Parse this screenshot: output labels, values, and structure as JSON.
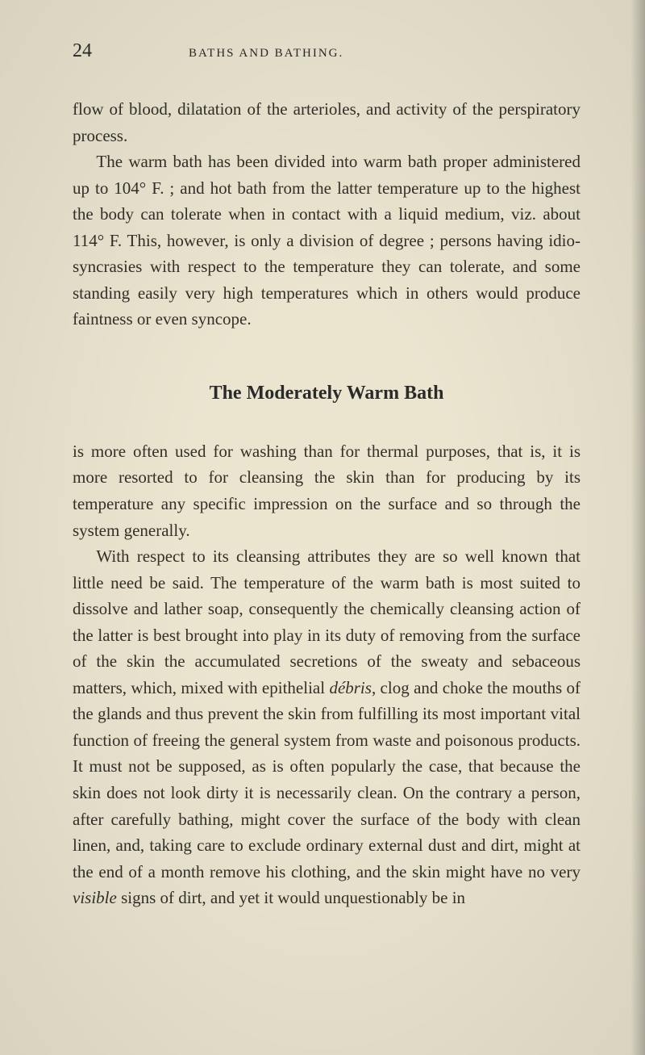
{
  "page": {
    "number": "24",
    "running_head": "BATHS AND BATHING.",
    "background_color": "#ebe5d0",
    "text_color": "#2a2a28",
    "body_fontsize": 21,
    "heading_fontsize": 24,
    "line_height": 1.55
  },
  "para1": "flow of blood, dilatation of the arterioles, and activity of the perspiratory process.",
  "para2_a": "The warm bath has been divided into warm bath proper administered up to 104° F. ; and hot bath from the latter temperature up to the highest the body can tolerate when in contact with a liquid medium, viz. about 114° F. This, however, is only a division of degree ; persons having idio­syncrasies with respect to the temperature they can tolerate, and some standing easily very high temperatures which in others would produce faintness or even syncope.",
  "heading": "The Moderately Warm Bath",
  "para3": "is more often used for washing than for thermal pur­poses, that is, it is more resorted to for cleansing the skin than for producing by its temperature any specific impression on the surface and so through the system generally.",
  "para4_a": "With respect to its cleansing attributes they are so well known that little need be said. The temperature of the warm bath is most suited to dissolve and lather soap, consequently the chemically cleansing action of the latter is best brought into play in its duty of removing from the surface of the skin the accumulated secretions of the sweaty and sebaceous matters, which, mixed with epithelial ",
  "para4_debris": "débris",
  "para4_b": ", clog and choke the mouths of the glands and thus prevent the skin from fulfilling its most important vital function of freeing the general system from waste and poisonous products. It must not be supposed, as is often popularly the case, that because the skin does not look dirty it is necessarily clean. On the contrary a person, after carefully bathing, might cover the surface of the body with clean linen, and, taking care to exclude ordinary external dust and dirt, might at the end of a month remove his clothing, and the skin might have no very ",
  "para4_visible": "visible",
  "para4_c": " signs of dirt, and yet it would unquestionably be in"
}
